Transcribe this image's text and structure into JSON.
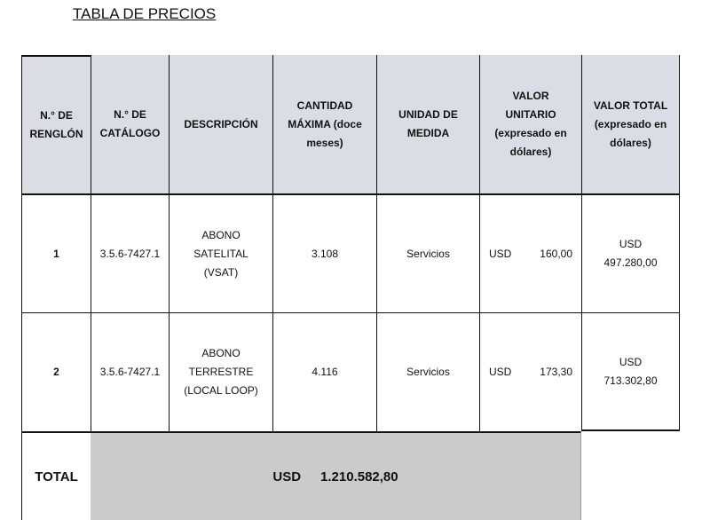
{
  "title": "TABLA DE PRECIOS",
  "headers": [
    "N.° DE RENGLÓN",
    "N.° DE CATÁLOGO",
    "DESCRIPCIÓN",
    "CANTIDAD MÁXIMA (doce meses)",
    "UNIDAD DE MEDIDA",
    "VALOR UNITARIO (expresado en dólares)",
    "VALOR TOTAL (expresado en dólares)"
  ],
  "rows": [
    {
      "renglon": "1",
      "catalogo": "3.5.6-7427.1",
      "descripcion": "ABONO SATELITAL (VSAT)",
      "cantidad": "3.108",
      "unidad": "Servicios",
      "moneda": "USD",
      "unitario": "160,00",
      "total_moneda": "USD",
      "total": "497.280,00"
    },
    {
      "renglon": "2",
      "catalogo": "3.5.6-7427.1",
      "descripcion": "ABONO TERRESTRE (LOCAL LOOP)",
      "cantidad": "4.116",
      "unidad": "Servicios",
      "moneda": "USD",
      "unitario": "173,30",
      "total_moneda": "USD",
      "total": "713.302,80"
    }
  ],
  "footer": {
    "label": "TOTAL",
    "currency": "USD",
    "amount": "1.210.582,80"
  }
}
